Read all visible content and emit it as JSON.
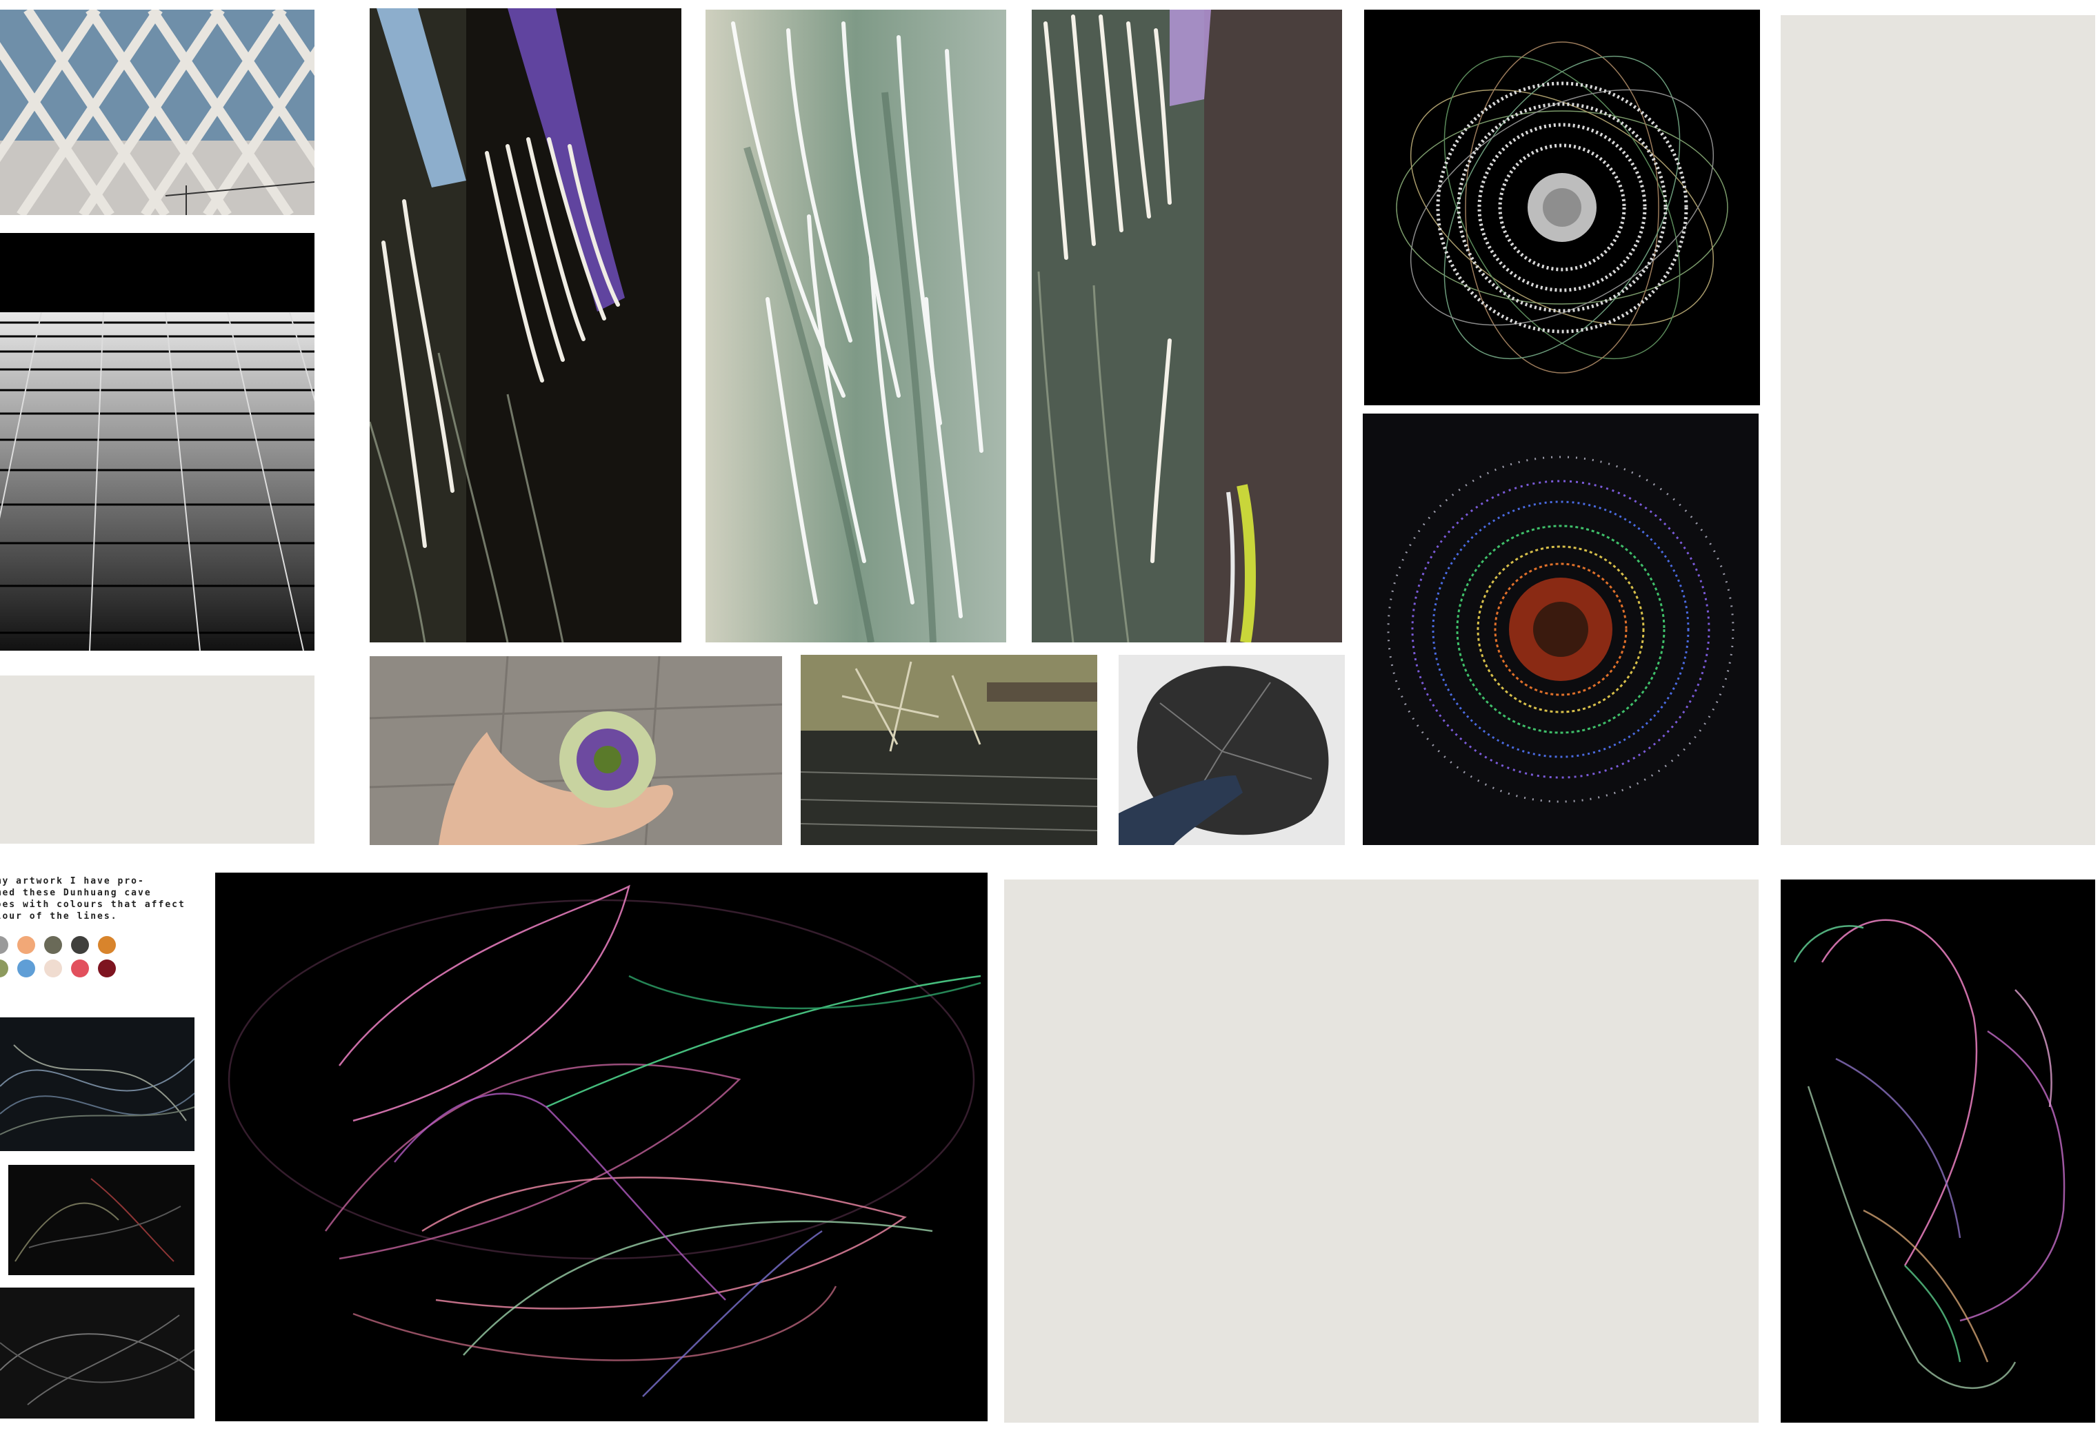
{
  "note": {
    "lines": [
      "r my artwork I have pro-",
      "ammed these Dunhuang cave",
      "scoes with colours that affect",
      " colour of the lines."
    ]
  },
  "palette": [
    "#9a9a9a",
    "#f2a877",
    "#6a6a58",
    "#3f3f3c",
    "#d8842c",
    "#8d9a5e",
    "#5f9ed6",
    "#f0dcd0",
    "#e2505d",
    "#7e1420"
  ]
}
